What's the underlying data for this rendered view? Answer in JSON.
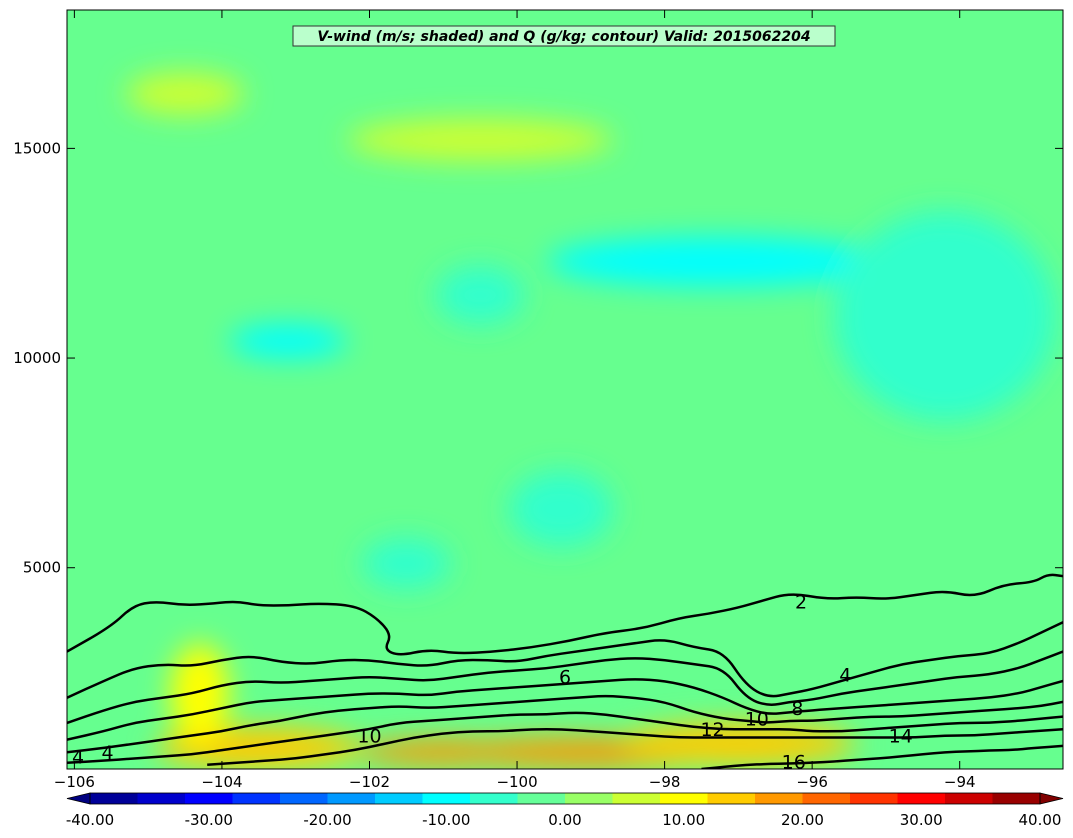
{
  "chart_data": {
    "type": "heatmap",
    "title": "V-wind (m/s; shaded) and Q (g/kg; contour) Valid: 2015062204",
    "xlabel": "",
    "ylabel": "",
    "xlim": [
      -106.1,
      -92.6
    ],
    "ylim": [
      200,
      18300
    ],
    "x_ticks": [
      -106,
      -104,
      -102,
      -100,
      -98,
      -96,
      -94
    ],
    "x_tick_labels": [
      "−106",
      "−104",
      "−102",
      "−100",
      "−98",
      "−96",
      "−94"
    ],
    "y_ticks": [
      5000,
      10000,
      15000
    ],
    "y_tick_labels": [
      "5000",
      "10000",
      "15000"
    ],
    "colorbar": {
      "min": -40,
      "max": 40,
      "step": 4,
      "extend": "both",
      "tick_values": [
        -40,
        -30,
        -20,
        -10,
        0,
        10,
        20,
        30,
        40
      ],
      "tick_labels": [
        "-40.00",
        "-30.00",
        "-20.00",
        "-10.00",
        "0.00",
        "10.00",
        "20.00",
        "30.00",
        "40.00"
      ],
      "colormap": "jet"
    },
    "shaded_features": [
      {
        "x": -99,
        "y": 600,
        "rx": 2.2,
        "ry": 350,
        "value": 18
      },
      {
        "x": -101,
        "y": 600,
        "rx": 1.2,
        "ry": 300,
        "value": 16
      },
      {
        "x": -97,
        "y": 800,
        "rx": 1.6,
        "ry": 500,
        "value": 13
      },
      {
        "x": -103.5,
        "y": 700,
        "rx": 1.4,
        "ry": 500,
        "value": 12
      },
      {
        "x": -104.3,
        "y": 2000,
        "rx": 0.4,
        "ry": 1200,
        "value": 9
      },
      {
        "x": -100.5,
        "y": 15200,
        "rx": 1.8,
        "ry": 500,
        "value": 6
      },
      {
        "x": -104.5,
        "y": 16300,
        "rx": 0.8,
        "ry": 500,
        "value": 5
      },
      {
        "x": -97.3,
        "y": 12300,
        "rx": 2.3,
        "ry": 600,
        "value": -9
      },
      {
        "x": -97.1,
        "y": 12400,
        "rx": 0.8,
        "ry": 400,
        "value": -12
      },
      {
        "x": -103.1,
        "y": 10400,
        "rx": 0.8,
        "ry": 400,
        "value": -9
      },
      {
        "x": -100.5,
        "y": 11500,
        "rx": 0.6,
        "ry": 700,
        "value": -7
      },
      {
        "x": -99.4,
        "y": 6400,
        "rx": 0.7,
        "ry": 900,
        "value": -7
      },
      {
        "x": -101.5,
        "y": 5100,
        "rx": 0.6,
        "ry": 600,
        "value": -6
      },
      {
        "x": -94.2,
        "y": 11000,
        "rx": 1.5,
        "ry": 2500,
        "value": -5
      }
    ],
    "contours": [
      {
        "value": 2,
        "label": "2",
        "x": [
          -106.1,
          -105.5,
          -105.2,
          -104.9,
          -104.5,
          -104.1,
          -103.8,
          -103.5,
          -103.1,
          -102.7,
          -102.2,
          -101.9,
          -101.7,
          -101.8,
          -101.6,
          -101.2,
          -100.8,
          -100.3,
          -99.8,
          -99.3,
          -98.8,
          -98.3,
          -97.8,
          -97.4,
          -97.0,
          -96.7,
          -96.3,
          -95.8,
          -95.4,
          -95.0,
          -94.6,
          -94.2,
          -93.8,
          -93.4,
          -93.0,
          -92.8,
          -92.6
        ],
        "y": [
          3000,
          3600,
          4100,
          4200,
          4100,
          4150,
          4200,
          4100,
          4100,
          4150,
          4100,
          3800,
          3400,
          3050,
          2900,
          3050,
          2950,
          3000,
          3100,
          3250,
          3450,
          3550,
          3800,
          3900,
          4050,
          4200,
          4400,
          4250,
          4300,
          4250,
          4350,
          4450,
          4300,
          4600,
          4650,
          4850,
          4800
        ]
      },
      {
        "value": 4,
        "label": "4",
        "x": [
          -106.1,
          -105.6,
          -105.2,
          -104.8,
          -104.4,
          -104.0,
          -103.6,
          -103.2,
          -102.8,
          -102.4,
          -102.0,
          -101.6,
          -101.2,
          -100.8,
          -100.4,
          -100.0,
          -99.6,
          -99.2,
          -98.8,
          -98.4,
          -98.0,
          -97.6,
          -97.2,
          -96.9,
          -96.6,
          -96.3,
          -96.0,
          -95.6,
          -95.2,
          -94.8,
          -94.4,
          -94.0,
          -93.6,
          -93.2,
          -92.9,
          -92.6
        ],
        "y": [
          1900,
          2300,
          2600,
          2700,
          2650,
          2800,
          2900,
          2750,
          2700,
          2800,
          2800,
          2700,
          2650,
          2800,
          2800,
          2750,
          2900,
          3000,
          3100,
          3200,
          3300,
          3100,
          3000,
          2200,
          1900,
          2000,
          2100,
          2300,
          2500,
          2700,
          2800,
          2900,
          2950,
          3200,
          3450,
          3700
        ]
      },
      {
        "value": 6,
        "label": "6",
        "x": [
          -106.1,
          -105.6,
          -105.2,
          -104.8,
          -104.4,
          -104.0,
          -103.6,
          -103.2,
          -102.8,
          -102.4,
          -102.0,
          -101.6,
          -101.2,
          -100.8,
          -100.4,
          -100.0,
          -99.6,
          -99.2,
          -98.8,
          -98.4,
          -98.0,
          -97.6,
          -97.2,
          -96.9,
          -96.6,
          -96.3,
          -96.0,
          -95.6,
          -95.2,
          -94.8,
          -94.4,
          -94.0,
          -93.6,
          -93.2,
          -92.9,
          -92.6
        ],
        "y": [
          1300,
          1600,
          1800,
          1900,
          2000,
          2200,
          2300,
          2250,
          2300,
          2350,
          2400,
          2350,
          2300,
          2400,
          2500,
          2550,
          2600,
          2700,
          2800,
          2850,
          2800,
          2700,
          2600,
          1900,
          1700,
          1800,
          1850,
          2000,
          2100,
          2200,
          2300,
          2400,
          2450,
          2600,
          2800,
          3000
        ]
      },
      {
        "value": 8,
        "label": "8",
        "x": [
          -106.1,
          -105.6,
          -105.2,
          -104.8,
          -104.4,
          -104.0,
          -103.6,
          -103.2,
          -102.8,
          -102.4,
          -102.0,
          -101.6,
          -101.2,
          -100.8,
          -100.4,
          -100.0,
          -99.6,
          -99.2,
          -98.8,
          -98.4,
          -98.0,
          -97.6,
          -97.2,
          -96.9,
          -96.6,
          -96.3,
          -96.0,
          -95.6,
          -95.2,
          -94.8,
          -94.4,
          -94.0,
          -93.6,
          -93.2,
          -92.9,
          -92.6
        ],
        "y": [
          900,
          1100,
          1300,
          1400,
          1500,
          1650,
          1800,
          1850,
          1900,
          1950,
          2000,
          2000,
          1950,
          2050,
          2100,
          2150,
          2200,
          2250,
          2300,
          2350,
          2300,
          2150,
          1900,
          1650,
          1500,
          1550,
          1600,
          1650,
          1700,
          1750,
          1800,
          1850,
          1900,
          2000,
          2150,
          2300
        ]
      },
      {
        "value": 10,
        "label": "10",
        "x": [
          -106.1,
          -105.6,
          -105.2,
          -104.8,
          -104.4,
          -104.0,
          -103.6,
          -103.2,
          -102.8,
          -102.4,
          -102.0,
          -101.6,
          -101.2,
          -100.8,
          -100.4,
          -100.0,
          -99.6,
          -99.2,
          -98.8,
          -98.4,
          -98.0,
          -97.6,
          -97.2,
          -96.9,
          -96.6,
          -96.3,
          -96.0,
          -95.6,
          -95.2,
          -94.8,
          -94.4,
          -94.0,
          -93.6,
          -93.2,
          -92.9,
          -92.6
        ],
        "y": [
          600,
          700,
          800,
          900,
          1000,
          1100,
          1250,
          1350,
          1500,
          1600,
          1650,
          1700,
          1650,
          1700,
          1750,
          1800,
          1850,
          1900,
          1950,
          1900,
          1800,
          1550,
          1400,
          1350,
          1300,
          1350,
          1350,
          1400,
          1450,
          1450,
          1500,
          1550,
          1600,
          1650,
          1700,
          1800
        ]
      },
      {
        "value": 12,
        "label": "12",
        "x": [
          -106.1,
          -105.6,
          -105.2,
          -104.8,
          -104.4,
          -104.0,
          -103.6,
          -103.2,
          -102.8,
          -102.4,
          -102.0,
          -101.6,
          -101.2,
          -100.8,
          -100.4,
          -100.0,
          -99.6,
          -99.2,
          -98.8,
          -98.4,
          -98.0,
          -97.6,
          -97.2,
          -96.9,
          -96.6,
          -96.3,
          -96.0,
          -95.6,
          -95.2,
          -94.8,
          -94.4,
          -94.0,
          -93.6,
          -93.2,
          -92.9,
          -92.6
        ],
        "y": [
          350,
          400,
          450,
          500,
          550,
          650,
          750,
          850,
          950,
          1050,
          1150,
          1300,
          1350,
          1400,
          1450,
          1500,
          1500,
          1550,
          1500,
          1400,
          1300,
          1200,
          1150,
          1150,
          1150,
          1150,
          1100,
          1100,
          1150,
          1200,
          1250,
          1300,
          1300,
          1350,
          1400,
          1450
        ]
      },
      {
        "value": 14,
        "label": "14",
        "x": [
          -104.2,
          -103.8,
          -103.4,
          -103.0,
          -102.6,
          -102.2,
          -101.8,
          -101.4,
          -101.0,
          -100.6,
          -100.2,
          -99.8,
          -99.4,
          -99.0,
          -98.6,
          -98.2,
          -97.8,
          -97.4,
          -97.0,
          -96.6,
          -96.2,
          -95.8,
          -95.4,
          -95.0,
          -94.6,
          -94.2,
          -93.8,
          -93.4,
          -93.0,
          -92.6
        ],
        "y": [
          300,
          350,
          400,
          450,
          550,
          650,
          800,
          950,
          1050,
          1100,
          1100,
          1150,
          1150,
          1100,
          1050,
          1000,
          950,
          950,
          950,
          950,
          950,
          950,
          950,
          950,
          950,
          1000,
          1000,
          1050,
          1100,
          1150
        ]
      },
      {
        "value": 16,
        "label": "16",
        "x": [
          -97.5,
          -97.2,
          -96.9,
          -96.6,
          -96.3,
          -96.0,
          -95.7,
          -95.4,
          -95.1,
          -94.8,
          -94.5,
          -94.2,
          -93.9,
          -93.6,
          -93.3,
          -93.0,
          -92.6
        ],
        "y": [
          200,
          250,
          300,
          320,
          330,
          350,
          380,
          420,
          450,
          500,
          550,
          600,
          620,
          640,
          650,
          700,
          750
        ]
      }
    ],
    "contour_label_positions": [
      {
        "value": 2,
        "x": -96.15,
        "y": 4200
      },
      {
        "value": 4,
        "x": -95.55,
        "y": 2450
      },
      {
        "value": 6,
        "x": -99.35,
        "y": 2400
      },
      {
        "value": 8,
        "x": -96.2,
        "y": 1650
      },
      {
        "value": 10,
        "x": -96.75,
        "y": 1400
      },
      {
        "value": 10,
        "x": -102.0,
        "y": 1000
      },
      {
        "value": 12,
        "x": -97.35,
        "y": 1150
      },
      {
        "value": 14,
        "x": -94.8,
        "y": 1000
      },
      {
        "value": 16,
        "x": -96.25,
        "y": 380
      },
      {
        "value": 4,
        "x": -105.95,
        "y": 500
      },
      {
        "value": 4,
        "x": -105.55,
        "y": 600
      }
    ]
  }
}
